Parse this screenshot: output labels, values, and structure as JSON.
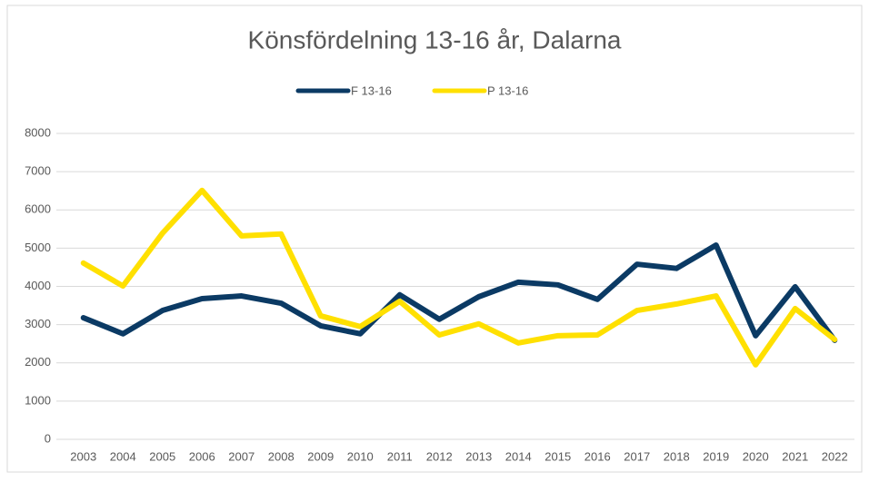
{
  "chart_data": {
    "type": "line",
    "title": "Könsfördelning 13-16 år, Dalarna",
    "categories": [
      "2003",
      "2004",
      "2005",
      "2006",
      "2007",
      "2008",
      "2009",
      "2010",
      "2011",
      "2012",
      "2013",
      "2014",
      "2015",
      "2016",
      "2017",
      "2018",
      "2019",
      "2020",
      "2021",
      "2022"
    ],
    "series": [
      {
        "name": "F 13-16",
        "color": "#0b3a64",
        "values": [
          3180,
          2760,
          3370,
          3680,
          3750,
          3560,
          2970,
          2760,
          3780,
          3140,
          3730,
          4110,
          4040,
          3660,
          4580,
          4470,
          5080,
          2710,
          3990,
          2590
        ]
      },
      {
        "name": "P 13-16",
        "color": "#ffe000",
        "values": [
          4610,
          4010,
          5390,
          6510,
          5320,
          5370,
          3230,
          2950,
          3610,
          2730,
          3020,
          2520,
          2710,
          2730,
          3370,
          3540,
          3750,
          1950,
          3420,
          2610
        ]
      }
    ],
    "ylim": [
      0,
      8000
    ],
    "yticks": [
      0,
      1000,
      2000,
      3000,
      4000,
      5000,
      6000,
      7000,
      8000
    ],
    "grid": true,
    "legend": "top"
  }
}
